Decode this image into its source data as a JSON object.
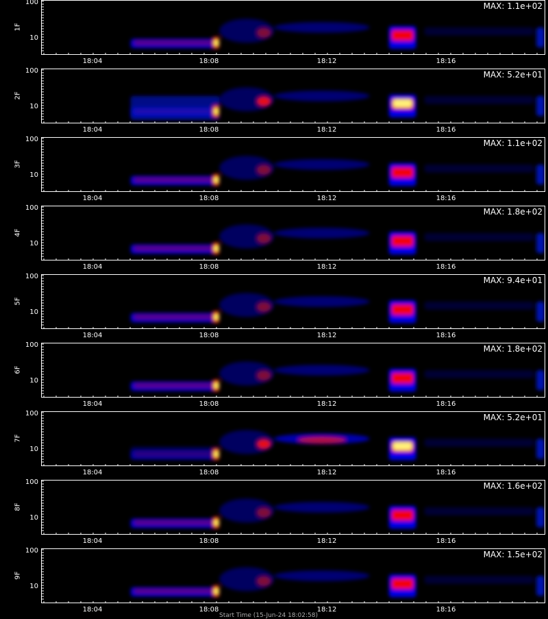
{
  "chart_data": {
    "type": "heatmap",
    "colormap": [
      "#000000",
      "#0000ff",
      "#ff0000",
      "#ffff00",
      "#ffffff"
    ],
    "x_ticks": [
      "18:04",
      "18:08",
      "18:12",
      "18:16"
    ],
    "y_ticks": [
      "100",
      "10"
    ],
    "panels": [
      {
        "label": "1F",
        "max": "MAX: 1.1e+02"
      },
      {
        "label": "2F",
        "max": "MAX: 5.2e+01"
      },
      {
        "label": "3F",
        "max": "MAX: 1.1e+02"
      },
      {
        "label": "4F",
        "max": "MAX: 1.8e+02"
      },
      {
        "label": "5F",
        "max": "MAX: 9.4e+01"
      },
      {
        "label": "6F",
        "max": "MAX: 1.8e+02"
      },
      {
        "label": "7F",
        "max": "MAX: 5.2e+01"
      },
      {
        "label": "8F",
        "max": "MAX: 1.6e+02"
      },
      {
        "label": "9F",
        "max": "MAX: 1.5e+02"
      }
    ],
    "x_title": "Start Time (15-Jun-24 18:02:58)"
  }
}
